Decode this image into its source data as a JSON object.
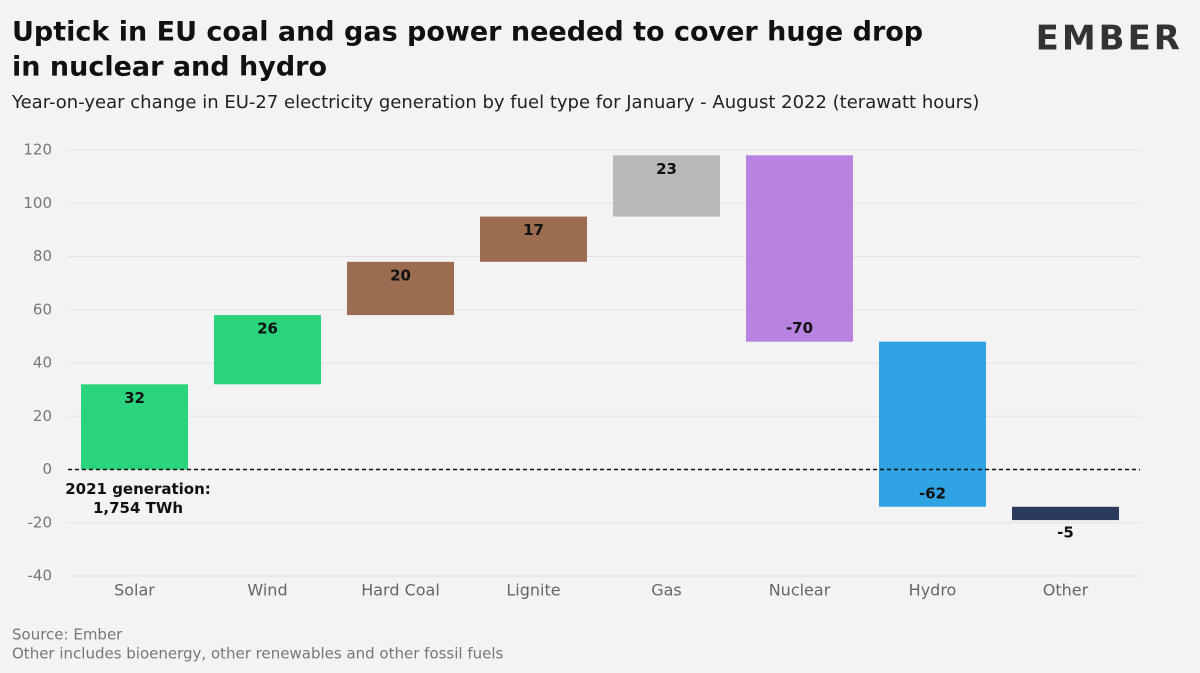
{
  "chart_data": {
    "type": "waterfall",
    "title_lines": [
      "Uptick in EU coal and gas power needed to cover huge drop",
      "in nuclear and hydro"
    ],
    "subtitle": "Year-on-year change in EU-27 electricity generation by fuel type for January - August 2022 (terawatt hours)",
    "logo": "EMBER",
    "categories": [
      "Solar",
      "Wind",
      "Hard Coal",
      "Lignite",
      "Gas",
      "Nuclear",
      "Hydro",
      "Other"
    ],
    "values": [
      32,
      26,
      20,
      17,
      23,
      -70,
      -62,
      -5
    ],
    "colors": [
      "#2ad47d",
      "#2ad47d",
      "#9c6c50",
      "#9c6c50",
      "#b9b9b9",
      "#b883e0",
      "#2fa3e4",
      "#2c3a5e"
    ],
    "ylim": [
      -40,
      120
    ],
    "yticks": [
      120,
      100,
      80,
      60,
      40,
      20,
      0,
      -20,
      -40
    ],
    "grid": true,
    "annotation_lines": [
      "2021 generation:",
      "1,754 TWh"
    ],
    "source": "Source: Ember",
    "note": "Other includes bioenergy, other renewables and other fossil fuels"
  }
}
